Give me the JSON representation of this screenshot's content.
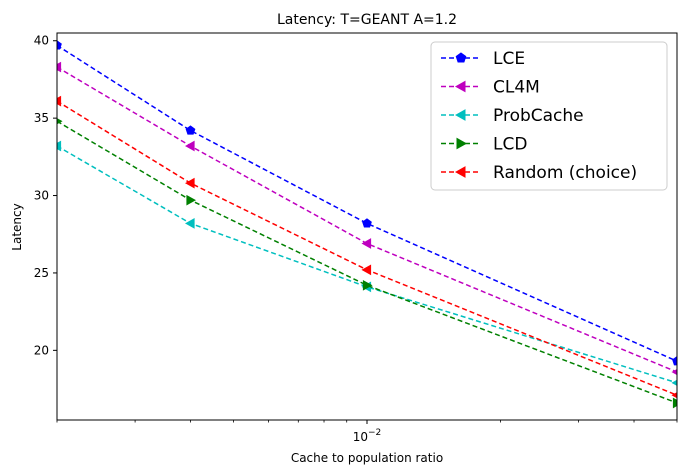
{
  "chart_data": {
    "type": "line",
    "title": "Latency: T=GEANT A=1.2",
    "xlabel": "Cache to population ratio",
    "ylabel": "Latency",
    "x_scale": "log",
    "xlim": [
      0.002,
      0.05
    ],
    "ylim": [
      15.5,
      40.5
    ],
    "yticks": [
      20,
      25,
      30,
      35,
      40
    ],
    "xticks": [
      {
        "value": 0.01,
        "base": "10",
        "exp": "−2"
      }
    ],
    "x": [
      0.002,
      0.004,
      0.01,
      0.05
    ],
    "grid": false,
    "legend_position": "top-right",
    "series": [
      {
        "name": "LCE",
        "color": "#0000ff",
        "marker": "pentagon",
        "values": [
          39.7,
          34.2,
          28.2,
          19.3
        ]
      },
      {
        "name": "CL4M",
        "color": "#bf00bf",
        "marker": "triangle-left",
        "values": [
          38.3,
          33.2,
          26.9,
          18.6
        ]
      },
      {
        "name": "ProbCache",
        "color": "#00bfbf",
        "marker": "triangle-left",
        "values": [
          33.2,
          28.2,
          24.1,
          17.9
        ]
      },
      {
        "name": "LCD",
        "color": "#008000",
        "marker": "triangle-right",
        "values": [
          34.8,
          29.7,
          24.2,
          16.6
        ]
      },
      {
        "name": "Random (choice)",
        "color": "#ff0000",
        "marker": "triangle-left",
        "values": [
          36.1,
          30.8,
          25.2,
          17.1
        ]
      }
    ]
  }
}
